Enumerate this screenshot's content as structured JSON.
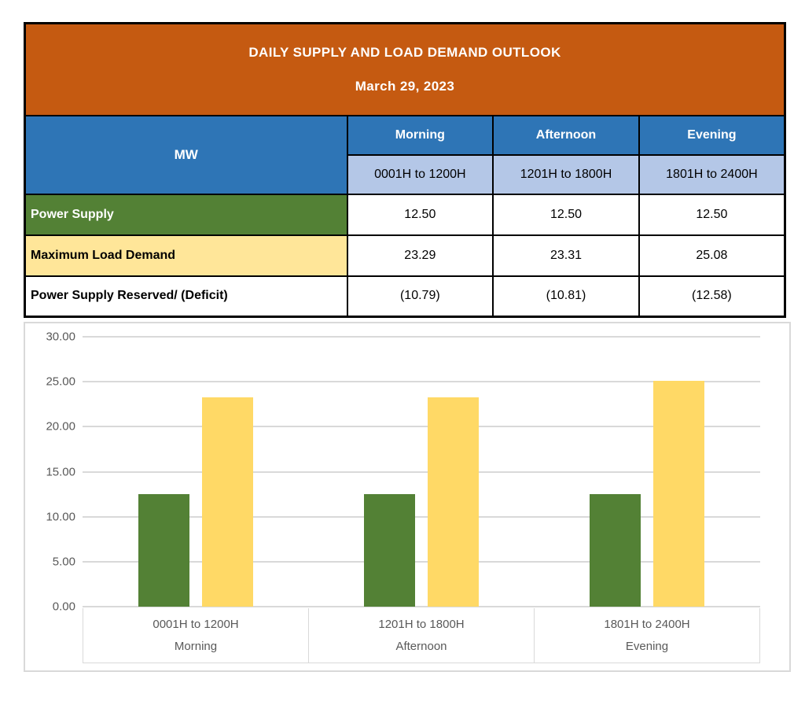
{
  "colors": {
    "title_orange": "#C55A11",
    "header_blue": "#2E75B6",
    "hours_light_blue": "#B4C7E7",
    "supply_green": "#538135",
    "demand_light_yellow": "#FFE699",
    "bar_green": "#538135",
    "bar_yellow": "#FFD966",
    "chart_gray": "#D9D9D9",
    "chart_text_gray": "#595959"
  },
  "table": {
    "title": "DAILY SUPPLY AND LOAD DEMAND OUTLOOK",
    "date": "March 29, 2023",
    "unit_header": "MW",
    "periods": [
      {
        "name": "Morning",
        "hours": "0001H to 1200H"
      },
      {
        "name": "Afternoon",
        "hours": "1201H to 1800H"
      },
      {
        "name": "Evening",
        "hours": "1801H to 2400H"
      }
    ],
    "rows": [
      {
        "label": "Power Supply",
        "values": [
          "12.50",
          "12.50",
          "12.50"
        ]
      },
      {
        "label": "Maximum Load Demand",
        "values": [
          "23.29",
          "23.31",
          "25.08"
        ]
      },
      {
        "label": "Power Supply Reserved/ (Deficit)",
        "values": [
          "(10.79)",
          "(10.81)",
          "(12.58)"
        ]
      }
    ]
  },
  "chart_data": {
    "type": "bar",
    "title": "",
    "categories": [
      {
        "hours": "0001H to 1200H",
        "period": "Morning"
      },
      {
        "hours": "1201H to 1800H",
        "period": "Afternoon"
      },
      {
        "hours": "1801H to 2400H",
        "period": "Evening"
      }
    ],
    "series": [
      {
        "name": "Power Supply",
        "color": "#538135",
        "values": [
          12.5,
          12.5,
          12.5
        ]
      },
      {
        "name": "Maximum Load Demand",
        "color": "#FFD966",
        "values": [
          23.29,
          23.31,
          25.08
        ]
      }
    ],
    "xlabel": "",
    "ylabel": "",
    "ylim": [
      0,
      30
    ],
    "ytick_step": 5,
    "ytick_labels": [
      "0.00",
      "5.00",
      "10.00",
      "15.00",
      "20.00",
      "25.00",
      "30.00"
    ],
    "grid": true,
    "legend_position": "none"
  }
}
